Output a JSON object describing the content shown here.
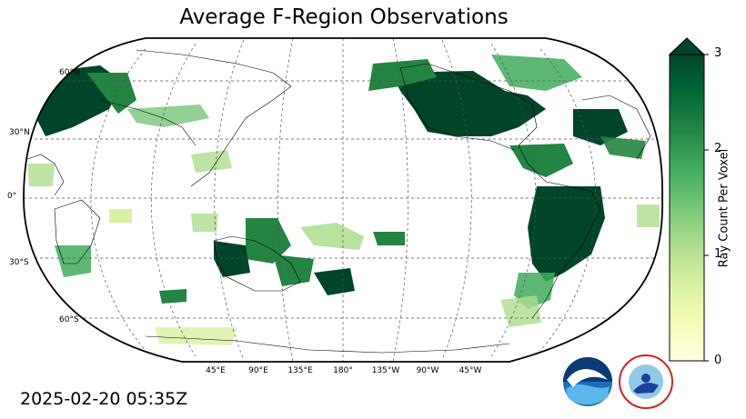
{
  "title": "Average F-Region Observations",
  "timestamp": "2025-02-20 05:35Z",
  "map": {
    "projection": "Robinson",
    "central_longitude": 180,
    "lat_labels": [
      "60°N",
      "30°N",
      "0°",
      "30°S",
      "60°S"
    ],
    "lon_labels": [
      "45°E",
      "90°E",
      "135°E",
      "180°",
      "135°W",
      "90°W",
      "45°W"
    ]
  },
  "colorbar": {
    "label": "Ray Count Per Voxel",
    "ticks": [
      "0",
      "1",
      "2",
      "3"
    ],
    "min": 0,
    "max": 3,
    "extend": "max",
    "colormap": "Greens-Yellow",
    "colors": [
      "#ffffe5",
      "#f7fcb9",
      "#d9f0a3",
      "#addd8e",
      "#78c679",
      "#41ab5d",
      "#238443",
      "#006837",
      "#004529"
    ]
  },
  "logos": [
    {
      "name": "noaa-logo",
      "text": "NOAA"
    },
    {
      "name": "nws-logo",
      "text": "NATIONAL WEATHER SERVICE"
    }
  ]
}
